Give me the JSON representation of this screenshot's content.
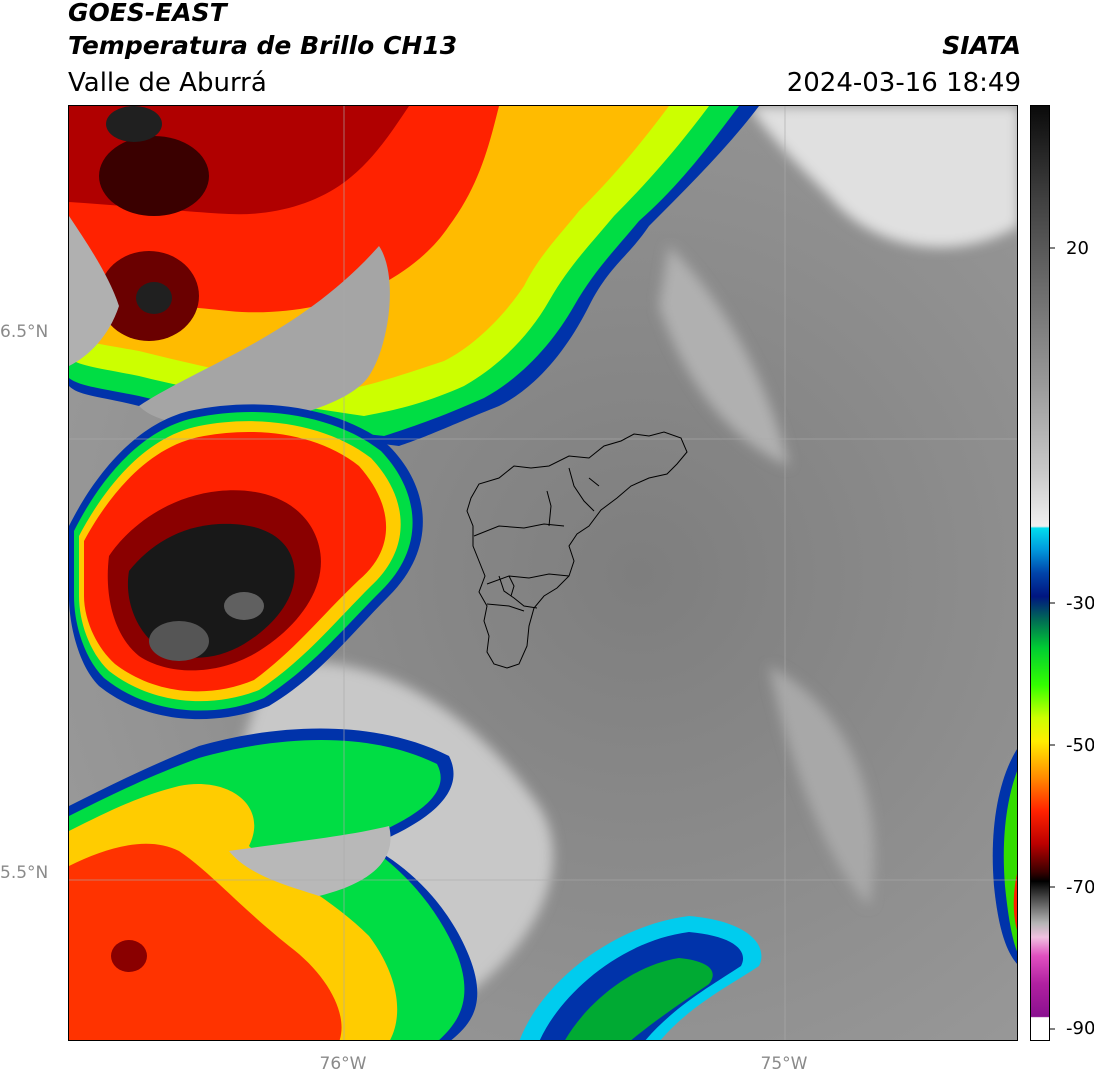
{
  "header": {
    "satellite": "GOES-EAST",
    "product": "Temperatura de Brillo CH13",
    "organization": "SIATA",
    "region": "Valle de Aburrá",
    "timestamp": "2024-03-16 18:49"
  },
  "axes": {
    "lat_labels": [
      "6.5°N",
      "5.5°N"
    ],
    "lon_labels": [
      "76°W",
      "75°W"
    ]
  },
  "colorbar": {
    "tick_labels": [
      "20",
      "-30",
      "-50",
      "-70",
      "-90"
    ],
    "range": [
      -90,
      35
    ]
  },
  "colors": {
    "clear_sky": "#7a7a7a",
    "cold_core": "#c40000",
    "moderate_cloud": "#ffee00",
    "edge_cloud": "#0033aa"
  }
}
